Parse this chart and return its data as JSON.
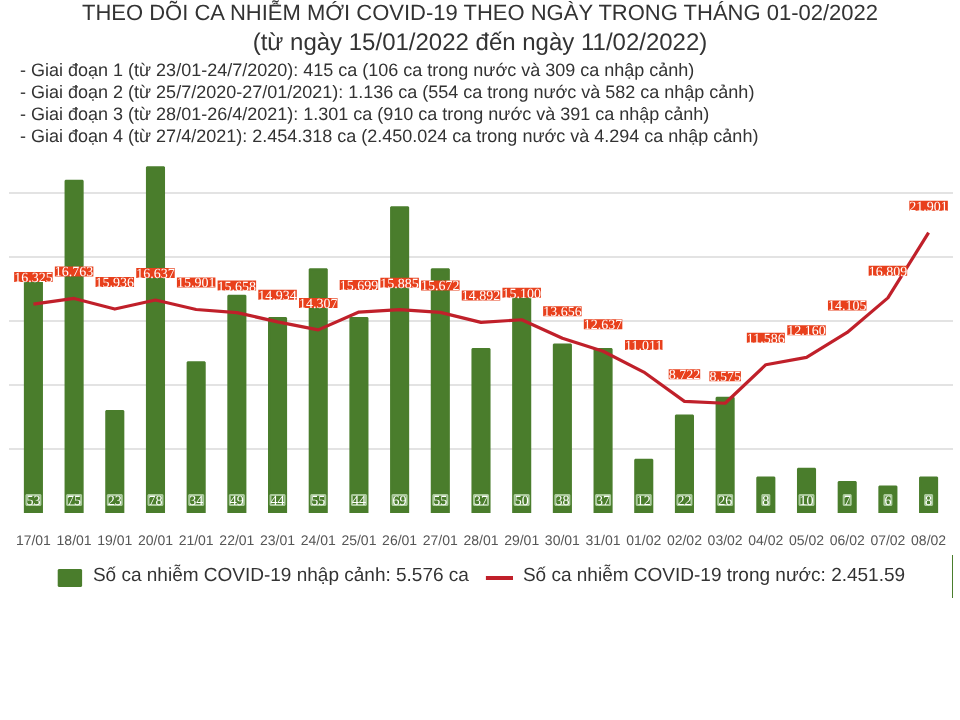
{
  "chart_data": {
    "type": "bar",
    "title": "THEO DÕI CA NHIỄM MỚI COVID-19 THEO NGÀY TRONG THÁNG 01-02/2022",
    "subtitle": "(từ ngày 15/01/2022 đến ngày 11/02/2022)",
    "annotations": [
      "- Giai đoạn 1 (từ 23/01-24/7/2020): 415 ca (106 ca trong nước và 309 ca nhập cảnh)",
      "- Giai đoạn 2 (từ 25/7/2020-27/01/2021): 1.136 ca (554 ca trong nước và 582 ca nhập cảnh)",
      "- Giai đoạn 3 (từ 28/01-26/4/2021): 1.301 ca (910 ca trong nước và 391 ca nhập cảnh)",
      "- Giai đoạn 4 (từ 27/4/2021): 2.454.318 ca (2.450.024 ca trong nước và 4.294 ca nhập cảnh)"
    ],
    "categories": [
      "17/01",
      "18/01",
      "19/01",
      "20/01",
      "21/01",
      "22/01",
      "23/01",
      "24/01",
      "25/01",
      "26/01",
      "27/01",
      "28/01",
      "29/01",
      "30/01",
      "31/01",
      "01/02",
      "02/02",
      "03/02",
      "04/02",
      "05/02",
      "06/02",
      "07/02",
      "08/02"
    ],
    "series": [
      {
        "name": "Số ca nhiễm COVID-19 nhập cảnh: 5.576 ca",
        "color": "#4a7d2c",
        "values": [
          53,
          75,
          23,
          78,
          34,
          49,
          44,
          55,
          44,
          69,
          55,
          37,
          50,
          38,
          37,
          12,
          22,
          26,
          8,
          10,
          7,
          6,
          8
        ]
      },
      {
        "name": "Số ca nhiễm COVID-19 trong nước: 2.451.59",
        "type": "line",
        "axis": "y2",
        "color": "#c0202a",
        "values": [
          16325,
          16763,
          15936,
          16637,
          15901,
          15658,
          14934,
          14307,
          15699,
          15885,
          15672,
          14892,
          15100,
          13656,
          12637,
          11011,
          8722,
          8575,
          11586,
          12160,
          14105,
          16809,
          21901
        ],
        "value_labels": [
          "16.325",
          "16.763",
          "15.936",
          "16.637",
          "15.901",
          "15.658",
          "14.934",
          "14.307",
          "15.699",
          "15.885",
          "15.672",
          "14.892",
          "15.100",
          "13.656",
          "12.637",
          "11.011",
          "8.722",
          "8.575",
          "11.586",
          "12.160",
          "14.105",
          "16.809",
          "21.901"
        ]
      }
    ],
    "tick_labels": "x",
    "grid": true,
    "data_labels": true,
    "legend": "bottom",
    "marker": "none",
    "line_style": "solid"
  }
}
